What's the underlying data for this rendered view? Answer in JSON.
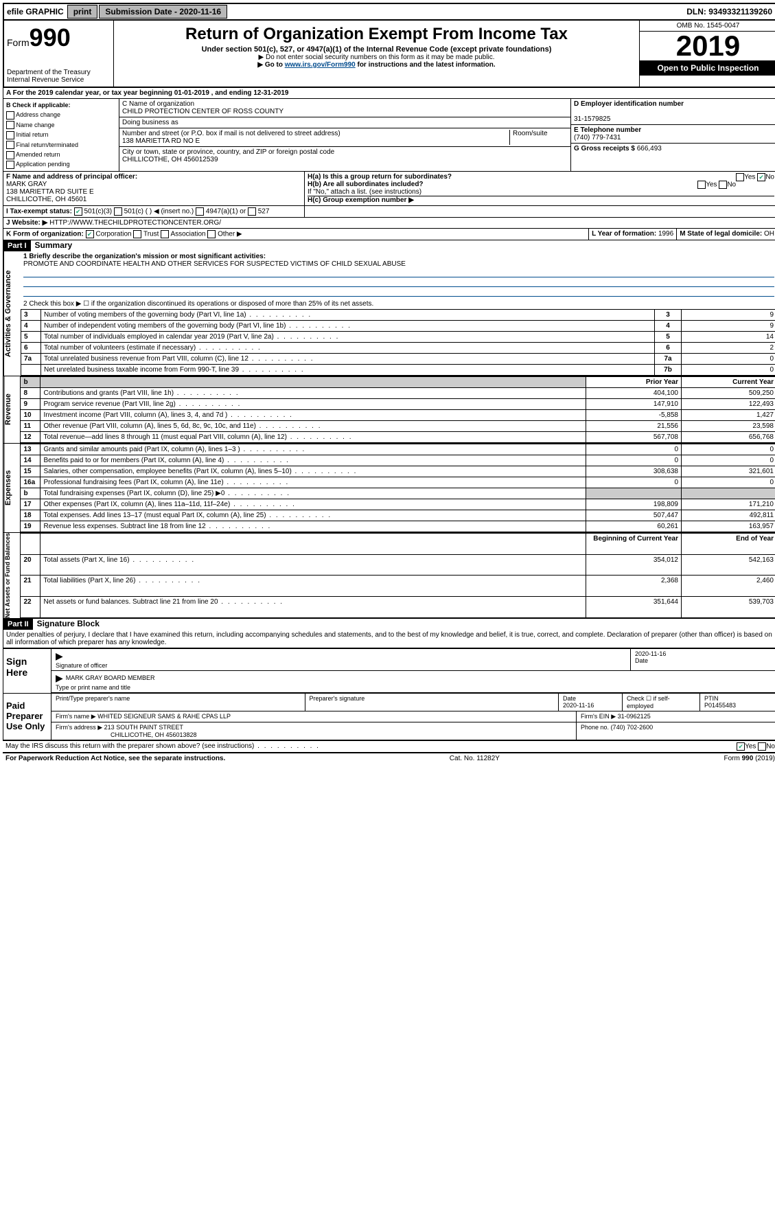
{
  "topbar": {
    "efile": "efile GRAPHIC",
    "print": "print",
    "subdate_label": "Submission Date - 2020-11-16",
    "dln": "DLN: 93493321139260"
  },
  "header": {
    "form_label": "Form",
    "form_num": "990",
    "dept": "Department of the Treasury\nInternal Revenue Service",
    "title": "Return of Organization Exempt From Income Tax",
    "sub": "Under section 501(c), 527, or 4947(a)(1) of the Internal Revenue Code (except private foundations)",
    "note1": "▶ Do not enter social security numbers on this form as it may be made public.",
    "note2_prefix": "▶ Go to ",
    "note2_link": "www.irs.gov/Form990",
    "note2_suffix": " for instructions and the latest information.",
    "omb": "OMB No. 1545-0047",
    "year": "2019",
    "open": "Open to Public Inspection"
  },
  "period": "A For the 2019 calendar year, or tax year beginning 01-01-2019   , and ending 12-31-2019",
  "sectionB": {
    "label": "B Check if applicable:",
    "items": [
      "Address change",
      "Name change",
      "Initial return",
      "Final return/terminated",
      "Amended return",
      "Application pending"
    ]
  },
  "sectionC": {
    "name_label": "C Name of organization",
    "name": "CHILD PROTECTION CENTER OF ROSS COUNTY",
    "dba_label": "Doing business as",
    "addr_label": "Number and street (or P.O. box if mail is not delivered to street address)",
    "room_label": "Room/suite",
    "addr": "138 MARIETTA RD NO E",
    "city_label": "City or town, state or province, country, and ZIP or foreign postal code",
    "city": "CHILLICOTHE, OH  456012539"
  },
  "sectionD": {
    "label": "D Employer identification number",
    "ein": "31-1579825"
  },
  "sectionE": {
    "label": "E Telephone number",
    "phone": "(740) 779-7431"
  },
  "sectionG": {
    "label": "G Gross receipts $",
    "amount": "666,493"
  },
  "sectionF": {
    "label": "F Name and address of principal officer:",
    "name": "MARK GRAY",
    "addr1": "138 MARIETTA RD SUITE E",
    "addr2": "CHILLICOTHE, OH  45601"
  },
  "sectionH": {
    "a": "H(a)  Is this a group return for subordinates?",
    "b": "H(b)  Are all subordinates included?",
    "b_note": "If \"No,\" attach a list. (see instructions)",
    "c": "H(c)  Group exemption number ▶"
  },
  "sectionI": {
    "label": "I     Tax-exempt status:",
    "opts": [
      "501(c)(3)",
      "501(c) (   ) ◀ (insert no.)",
      "4947(a)(1) or",
      "527"
    ]
  },
  "sectionJ": {
    "label": "J     Website: ▶",
    "url": "HTTP://WWW.THECHILDPROTECTIONCENTER.ORG/"
  },
  "sectionK": {
    "label": "K Form of organization:",
    "opts": [
      "Corporation",
      "Trust",
      "Association",
      "Other ▶"
    ]
  },
  "sectionL": {
    "label": "L Year of formation:",
    "val": "1996"
  },
  "sectionM": {
    "label": "M State of legal domicile:",
    "val": "OH"
  },
  "part1": {
    "header": "Part I",
    "title": "Summary",
    "q1": "1  Briefly describe the organization's mission or most significant activities:",
    "mission": "PROMOTE AND COORDINATE HEALTH AND OTHER SERVICES FOR SUSPECTED VICTIMS OF CHILD SEXUAL ABUSE",
    "q2": "2    Check this box ▶ ☐ if the organization discontinued its operations or disposed of more than 25% of its net assets.",
    "lines_gov": [
      {
        "n": "3",
        "t": "Number of voting members of the governing body (Part VI, line 1a)",
        "k": "3",
        "v": "9"
      },
      {
        "n": "4",
        "t": "Number of independent voting members of the governing body (Part VI, line 1b)",
        "k": "4",
        "v": "9"
      },
      {
        "n": "5",
        "t": "Total number of individuals employed in calendar year 2019 (Part V, line 2a)",
        "k": "5",
        "v": "14"
      },
      {
        "n": "6",
        "t": "Total number of volunteers (estimate if necessary)",
        "k": "6",
        "v": "2"
      },
      {
        "n": "7a",
        "t": "Total unrelated business revenue from Part VIII, column (C), line 12",
        "k": "7a",
        "v": "0"
      },
      {
        "n": "",
        "t": "Net unrelated business taxable income from Form 990-T, line 39",
        "k": "7b",
        "v": "0"
      }
    ],
    "col_prior": "Prior Year",
    "col_current": "Current Year",
    "revenue": [
      {
        "n": "8",
        "t": "Contributions and grants (Part VIII, line 1h)",
        "p": "404,100",
        "c": "509,250"
      },
      {
        "n": "9",
        "t": "Program service revenue (Part VIII, line 2g)",
        "p": "147,910",
        "c": "122,493"
      },
      {
        "n": "10",
        "t": "Investment income (Part VIII, column (A), lines 3, 4, and 7d )",
        "p": "-5,858",
        "c": "1,427"
      },
      {
        "n": "11",
        "t": "Other revenue (Part VIII, column (A), lines 5, 6d, 8c, 9c, 10c, and 11e)",
        "p": "21,556",
        "c": "23,598"
      },
      {
        "n": "12",
        "t": "Total revenue—add lines 8 through 11 (must equal Part VIII, column (A), line 12)",
        "p": "567,708",
        "c": "656,768"
      }
    ],
    "expenses": [
      {
        "n": "13",
        "t": "Grants and similar amounts paid (Part IX, column (A), lines 1–3 )",
        "p": "0",
        "c": "0"
      },
      {
        "n": "14",
        "t": "Benefits paid to or for members (Part IX, column (A), line 4)",
        "p": "0",
        "c": "0"
      },
      {
        "n": "15",
        "t": "Salaries, other compensation, employee benefits (Part IX, column (A), lines 5–10)",
        "p": "308,638",
        "c": "321,601"
      },
      {
        "n": "16a",
        "t": "Professional fundraising fees (Part IX, column (A), line 11e)",
        "p": "0",
        "c": "0"
      },
      {
        "n": "b",
        "t": "Total fundraising expenses (Part IX, column (D), line 25) ▶0",
        "p": "",
        "c": ""
      },
      {
        "n": "17",
        "t": "Other expenses (Part IX, column (A), lines 11a–11d, 11f–24e)",
        "p": "198,809",
        "c": "171,210"
      },
      {
        "n": "18",
        "t": "Total expenses. Add lines 13–17 (must equal Part IX, column (A), line 25)",
        "p": "507,447",
        "c": "492,811"
      },
      {
        "n": "19",
        "t": "Revenue less expenses. Subtract line 18 from line 12",
        "p": "60,261",
        "c": "163,957"
      }
    ],
    "col_begin": "Beginning of Current Year",
    "col_end": "End of Year",
    "netassets": [
      {
        "n": "20",
        "t": "Total assets (Part X, line 16)",
        "p": "354,012",
        "c": "542,163"
      },
      {
        "n": "21",
        "t": "Total liabilities (Part X, line 26)",
        "p": "2,368",
        "c": "2,460"
      },
      {
        "n": "22",
        "t": "Net assets or fund balances. Subtract line 21 from line 20",
        "p": "351,644",
        "c": "539,703"
      }
    ],
    "vlabels": {
      "gov": "Activities & Governance",
      "rev": "Revenue",
      "exp": "Expenses",
      "net": "Net Assets or Fund Balances"
    }
  },
  "part2": {
    "header": "Part II",
    "title": "Signature Block",
    "decl": "Under penalties of perjury, I declare that I have examined this return, including accompanying schedules and statements, and to the best of my knowledge and belief, it is true, correct, and complete. Declaration of preparer (other than officer) is based on all information of which preparer has any knowledge."
  },
  "sign": {
    "label": "Sign Here",
    "sig_officer": "Signature of officer",
    "date": "2020-11-16",
    "date_label": "Date",
    "name": "MARK GRAY BOARD MEMBER",
    "name_label": "Type or print name and title"
  },
  "paid": {
    "label": "Paid Preparer Use Only",
    "h_name": "Print/Type preparer's name",
    "h_sig": "Preparer's signature",
    "h_date": "Date",
    "date": "2020-11-16",
    "h_check": "Check ☐ if self-employed",
    "h_ptin": "PTIN",
    "ptin": "P01455483",
    "firm_label": "Firm's name    ▶",
    "firm": "WHITED SEIGNEUR SAMS & RAHE CPAS LLP",
    "firm_ein_label": "Firm's EIN ▶",
    "firm_ein": "31-0962125",
    "firm_addr_label": "Firm's address ▶",
    "firm_addr": "213 SOUTH PAINT STREET",
    "firm_city": "CHILLICOTHE, OH  456013828",
    "phone_label": "Phone no.",
    "phone": "(740) 702-2600"
  },
  "footer": {
    "discuss": "May the IRS discuss this return with the preparer shown above? (see instructions)",
    "paperwork": "For Paperwork Reduction Act Notice, see the separate instructions.",
    "cat": "Cat. No. 11282Y",
    "form": "Form 990 (2019)"
  }
}
